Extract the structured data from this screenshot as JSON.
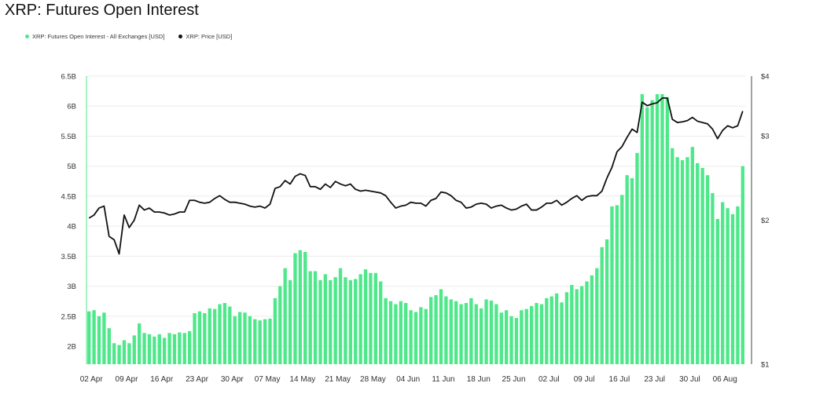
{
  "title": "XRP: Futures Open Interest",
  "legend": [
    {
      "label": "XRP: Futures Open Interest - All Exchanges [USD]",
      "color": "#4ee88a"
    },
    {
      "label": "XRP: Price [USD]",
      "color": "#111111"
    }
  ],
  "chart_data": {
    "type": "bar",
    "grid": true,
    "legend_position": "top-left",
    "x_tick_labels": [
      "02 Apr",
      "09 Apr",
      "16 Apr",
      "23 Apr",
      "30 Apr",
      "07 May",
      "14 May",
      "21 May",
      "28 May",
      "04 Jun",
      "11 Jun",
      "18 Jun",
      "25 Jun",
      "02 Jul",
      "09 Jul",
      "16 Jul",
      "23 Jul",
      "30 Jul",
      "06 Aug"
    ],
    "y_left": {
      "ticks": [
        "2B",
        "2.5B",
        "3B",
        "3.5B",
        "4B",
        "4.5B",
        "5B",
        "5.5B",
        "6B",
        "6.5B"
      ],
      "tick_values": [
        2,
        2.5,
        3,
        3.5,
        4,
        4.5,
        5,
        5.5,
        6,
        6.5
      ],
      "range": [
        1.7,
        6.5
      ],
      "unit": "B USD"
    },
    "y_right": {
      "ticks": [
        "$1",
        "$2",
        "$3",
        "$4"
      ],
      "tick_values": [
        1,
        2,
        3,
        4
      ],
      "range": [
        1,
        4
      ],
      "scale": "log"
    },
    "series": [
      {
        "name": "XRP: Futures Open Interest - All Exchanges [USD]",
        "kind": "bar",
        "axis": "left",
        "color": "#4ee88a",
        "values": [
          2.58,
          2.6,
          2.5,
          2.56,
          2.3,
          2.05,
          2.02,
          2.1,
          2.05,
          2.18,
          2.38,
          2.22,
          2.2,
          2.16,
          2.2,
          2.14,
          2.22,
          2.2,
          2.23,
          2.22,
          2.25,
          2.55,
          2.58,
          2.55,
          2.63,
          2.62,
          2.7,
          2.72,
          2.66,
          2.5,
          2.57,
          2.56,
          2.5,
          2.45,
          2.43,
          2.45,
          2.46,
          2.8,
          3.0,
          3.3,
          3.1,
          3.55,
          3.6,
          3.57,
          3.25,
          3.25,
          3.1,
          3.2,
          3.1,
          3.15,
          3.3,
          3.15,
          3.1,
          3.12,
          3.2,
          3.28,
          3.22,
          3.22,
          3.08,
          2.8,
          2.75,
          2.7,
          2.75,
          2.72,
          2.6,
          2.57,
          2.65,
          2.62,
          2.82,
          2.85,
          2.95,
          2.83,
          2.78,
          2.75,
          2.7,
          2.72,
          2.8,
          2.7,
          2.63,
          2.78,
          2.76,
          2.7,
          2.56,
          2.6,
          2.5,
          2.47,
          2.6,
          2.62,
          2.67,
          2.72,
          2.7,
          2.8,
          2.83,
          2.88,
          2.73,
          2.9,
          3.02,
          2.95,
          3.0,
          3.08,
          3.18,
          3.3,
          3.65,
          3.78,
          4.33,
          4.35,
          4.52,
          4.85,
          4.8,
          5.22,
          6.2,
          5.98,
          6.1,
          6.2,
          6.2,
          6.15,
          5.3,
          5.15,
          5.1,
          5.15,
          5.32,
          5.05,
          4.97,
          4.85,
          4.55,
          4.12,
          4.4,
          4.3,
          4.2,
          4.33,
          5.0
        ]
      },
      {
        "name": "XRP: Price [USD]",
        "kind": "line",
        "axis": "right",
        "color": "#111111",
        "values": [
          2.02,
          2.05,
          2.12,
          2.14,
          1.85,
          1.82,
          1.7,
          2.05,
          1.93,
          2.0,
          2.15,
          2.1,
          2.12,
          2.08,
          2.08,
          2.07,
          2.05,
          2.06,
          2.08,
          2.08,
          2.2,
          2.2,
          2.18,
          2.17,
          2.18,
          2.22,
          2.25,
          2.21,
          2.18,
          2.18,
          2.17,
          2.16,
          2.14,
          2.13,
          2.14,
          2.12,
          2.16,
          2.33,
          2.35,
          2.42,
          2.38,
          2.47,
          2.5,
          2.48,
          2.35,
          2.35,
          2.32,
          2.38,
          2.34,
          2.41,
          2.38,
          2.36,
          2.38,
          2.32,
          2.3,
          2.31,
          2.3,
          2.29,
          2.28,
          2.25,
          2.18,
          2.12,
          2.14,
          2.15,
          2.18,
          2.17,
          2.17,
          2.14,
          2.2,
          2.22,
          2.29,
          2.28,
          2.25,
          2.2,
          2.18,
          2.12,
          2.13,
          2.16,
          2.17,
          2.16,
          2.12,
          2.14,
          2.15,
          2.12,
          2.1,
          2.11,
          2.14,
          2.16,
          2.1,
          2.1,
          2.13,
          2.17,
          2.17,
          2.2,
          2.15,
          2.18,
          2.22,
          2.25,
          2.2,
          2.24,
          2.25,
          2.25,
          2.3,
          2.45,
          2.58,
          2.78,
          2.85,
          2.98,
          3.1,
          3.05,
          3.53,
          3.47,
          3.5,
          3.52,
          3.6,
          3.6,
          3.25,
          3.2,
          3.21,
          3.23,
          3.28,
          3.22,
          3.2,
          3.18,
          3.1,
          2.96,
          3.08,
          3.15,
          3.12,
          3.15,
          3.38
        ]
      }
    ]
  }
}
